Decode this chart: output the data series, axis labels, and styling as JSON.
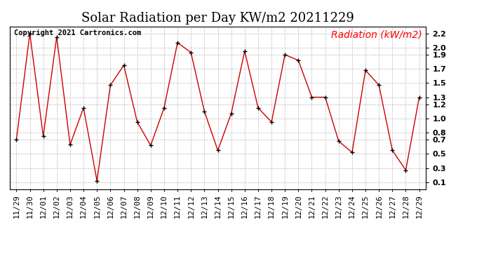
{
  "title": "Solar Radiation per Day KW/m2 20211229",
  "legend_label": "Radiation (kW/m2)",
  "copyright_text": "Copyright 2021 Cartronics.com",
  "dates": [
    "11/29",
    "11/30",
    "12/01",
    "12/02",
    "12/03",
    "12/04",
    "12/05",
    "12/06",
    "12/07",
    "12/08",
    "12/09",
    "12/10",
    "12/11",
    "12/12",
    "12/13",
    "12/14",
    "12/15",
    "12/16",
    "12/17",
    "12/18",
    "12/19",
    "12/20",
    "12/21",
    "12/22",
    "12/23",
    "12/24",
    "12/25",
    "12/26",
    "12/27",
    "12/28",
    "12/29"
  ],
  "values": [
    0.7,
    2.2,
    0.75,
    2.15,
    0.63,
    1.15,
    0.12,
    1.47,
    1.75,
    0.95,
    0.62,
    1.15,
    2.07,
    1.93,
    1.1,
    0.55,
    1.07,
    1.95,
    1.15,
    0.95,
    1.9,
    1.82,
    1.3,
    1.3,
    0.68,
    0.52,
    1.68,
    1.47,
    0.55,
    0.27,
    1.3
  ],
  "line_color": "#cc0000",
  "marker_color": "#000000",
  "bg_color": "#ffffff",
  "grid_color": "#bbbbbb",
  "ylim_min": 0.0,
  "ylim_max": 2.3,
  "yticks": [
    0.1,
    0.3,
    0.5,
    0.7,
    0.8,
    1.0,
    1.2,
    1.3,
    1.5,
    1.7,
    1.9,
    2.0,
    2.2
  ],
  "ytick_labels": [
    "0.1",
    "0.3",
    "0.5",
    "0.7",
    "0.8",
    "1.0",
    "1.2",
    "1.3",
    "1.5",
    "1.7",
    "1.9",
    "2.0",
    "2.2"
  ],
  "title_fontsize": 13,
  "legend_fontsize": 10,
  "tick_fontsize": 8,
  "copyright_fontsize": 7.5
}
